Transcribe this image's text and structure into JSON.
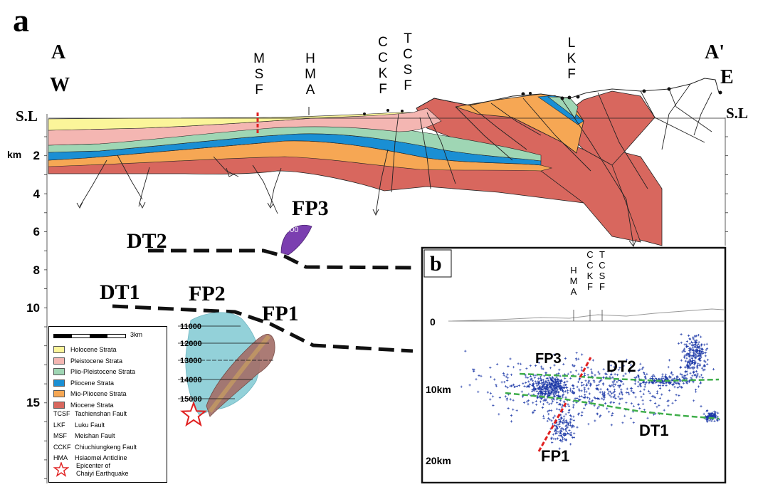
{
  "panel_a_label": "a",
  "panel_b_label": "b",
  "section": {
    "west_end": "A",
    "west_dir": "W",
    "east_end": "A'",
    "east_dir": "E",
    "sea_level_left": "S.L",
    "sea_level_right": "S.L",
    "depth_unit": "km",
    "depth_ticks": [
      "2",
      "4",
      "6",
      "8",
      "10",
      "15"
    ],
    "structure_labels": [
      "MSF",
      "HMA",
      "CCKF",
      "TCSF",
      "LKF"
    ],
    "decollements": [
      "DT2",
      "DT1"
    ],
    "fault_planes": [
      "FP3",
      "FP2",
      "FP1"
    ],
    "fp3_depth": "6000",
    "fp2_contours": [
      "11000",
      "12000",
      "13000",
      "14000",
      "15000"
    ]
  },
  "legend": {
    "scale_label": "3km",
    "strata": [
      {
        "name": "Holocene Strata",
        "color": "#fbf59a"
      },
      {
        "name": "Pleistocene Strata",
        "color": "#f4b6b2"
      },
      {
        "name": "Plio-Pleistocene Strata",
        "color": "#9fd6b4"
      },
      {
        "name": "Pliocene Strata",
        "color": "#1a8fd4"
      },
      {
        "name": "Mio-Pliocene Strata",
        "color": "#f6a754"
      },
      {
        "name": "Miocene Strata",
        "color": "#d8675e"
      }
    ],
    "faults": [
      {
        "abbr": "TCSF",
        "name": "Tachienshan Fault"
      },
      {
        "abbr": "LKF",
        "name": "Luku Fault"
      },
      {
        "abbr": "MSF",
        "name": "Meishan Fault"
      },
      {
        "abbr": "CCKF",
        "name": "Chiuchiungkeng Fault"
      },
      {
        "abbr": "HMA",
        "name": "Hsiaomei Anticline"
      }
    ],
    "epicenter_line1": "Epicenter of",
    "epicenter_line2": "Chaiyi Earthquake"
  },
  "inset": {
    "surface_labels": [
      "HMA",
      "CCKF",
      "TCSF"
    ],
    "zero_label": "0",
    "depth_labels": [
      "10km",
      "20km"
    ],
    "fault_labels": [
      "FP3",
      "DT2",
      "FP1",
      "DT1"
    ]
  },
  "colors": {
    "holocene": "#fbf59a",
    "pleistocene": "#f4b6b2",
    "plio_pleistocene": "#9fd6b4",
    "pliocene": "#1a8fd4",
    "mio_pliocene": "#f6a754",
    "miocene": "#d8675e",
    "fp3": "#7b3fb0",
    "fp2": "#8ecfd8",
    "fp1": "#a4706a",
    "trace_red": "#e02020",
    "seismicity": "#1e3aa8",
    "inset_trace": "#3fae4a"
  }
}
